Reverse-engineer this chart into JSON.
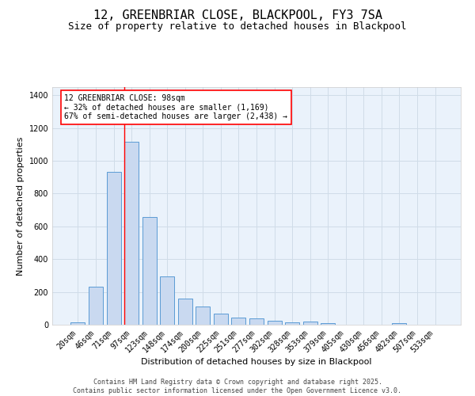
{
  "title": "12, GREENBRIAR CLOSE, BLACKPOOL, FY3 7SA",
  "subtitle": "Size of property relative to detached houses in Blackpool",
  "xlabel": "Distribution of detached houses by size in Blackpool",
  "ylabel": "Number of detached properties",
  "categories": [
    "20sqm",
    "46sqm",
    "71sqm",
    "97sqm",
    "123sqm",
    "148sqm",
    "174sqm",
    "200sqm",
    "225sqm",
    "251sqm",
    "277sqm",
    "302sqm",
    "328sqm",
    "353sqm",
    "379sqm",
    "405sqm",
    "430sqm",
    "456sqm",
    "482sqm",
    "507sqm",
    "533sqm"
  ],
  "values": [
    15,
    230,
    935,
    1115,
    655,
    295,
    160,
    110,
    68,
    45,
    40,
    22,
    15,
    20,
    10,
    0,
    0,
    0,
    8,
    0,
    0
  ],
  "bar_color": "#c9d9f0",
  "bar_edge_color": "#5b9bd5",
  "grid_color": "#d0dce8",
  "background_color": "#eaf2fb",
  "red_line_index": 3,
  "annotation_line1": "12 GREENBRIAR CLOSE: 98sqm",
  "annotation_line2": "← 32% of detached houses are smaller (1,169)",
  "annotation_line3": "67% of semi-detached houses are larger (2,438) →",
  "footer_text": "Contains HM Land Registry data © Crown copyright and database right 2025.\nContains public sector information licensed under the Open Government Licence v3.0.",
  "ylim": [
    0,
    1450
  ],
  "title_fontsize": 11,
  "subtitle_fontsize": 9,
  "axis_label_fontsize": 8,
  "tick_fontsize": 7,
  "annotation_fontsize": 7,
  "footer_fontsize": 6
}
